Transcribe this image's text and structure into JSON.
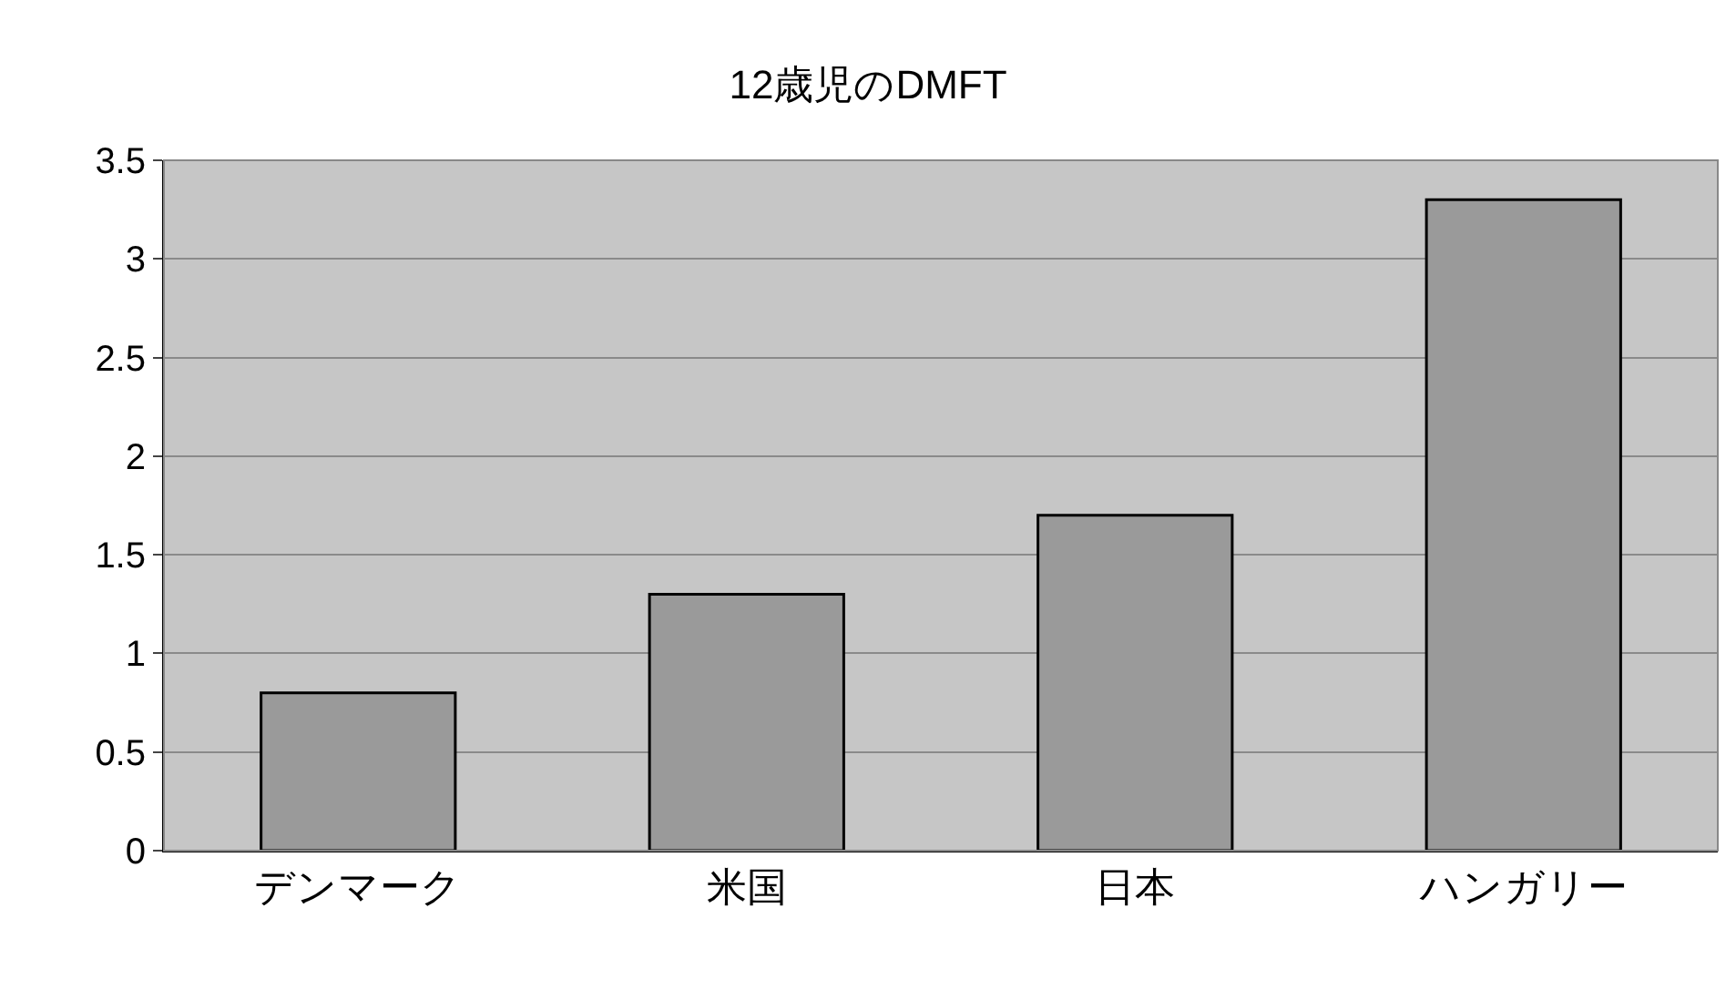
{
  "chart_data": {
    "type": "bar",
    "title": "12歳児のDMFT",
    "categories": [
      "デンマーク",
      "米国",
      "日本",
      "ハンガリー"
    ],
    "values": [
      0.8,
      1.3,
      1.7,
      3.3
    ],
    "color": "#9a9a9a",
    "ylim": [
      0,
      3.5
    ],
    "yticks": [
      0,
      0.5,
      1,
      1.5,
      2,
      2.5,
      3,
      3.5
    ],
    "grid": "y",
    "legend": false
  }
}
